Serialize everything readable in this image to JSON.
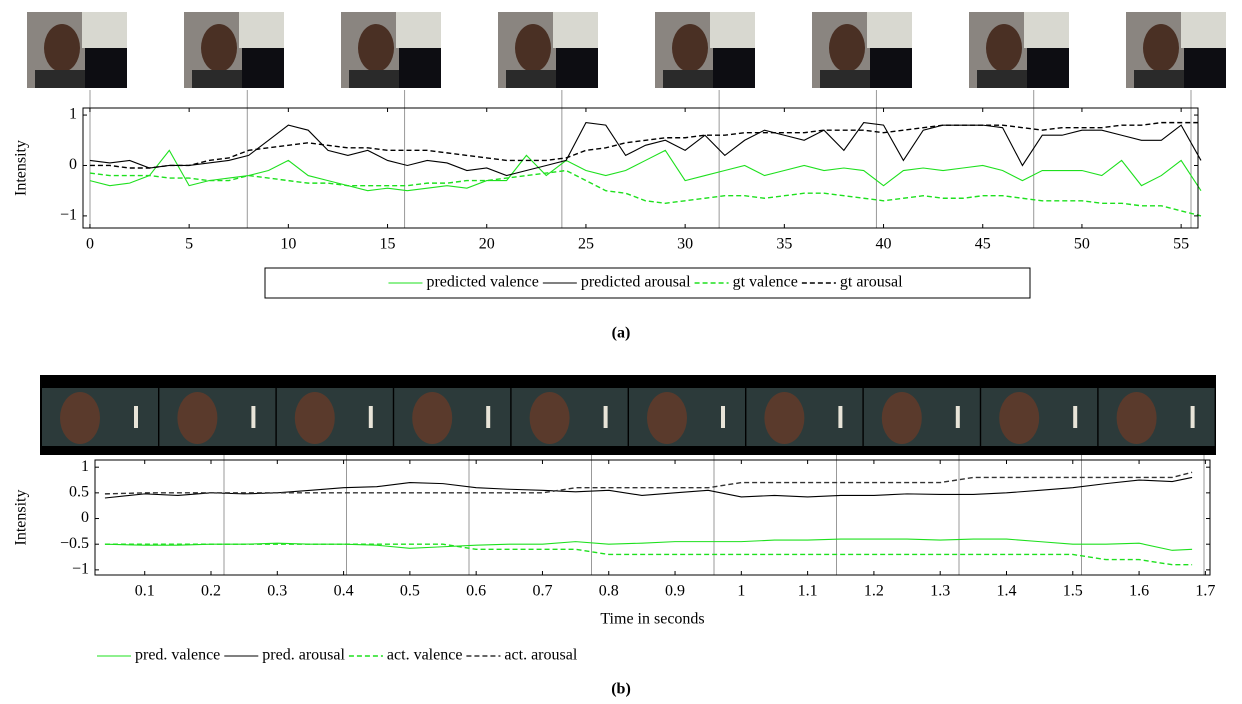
{
  "chart_data": [
    {
      "type": "line",
      "ylabel": "Intensity",
      "caption": "(a)",
      "legend": "bottom",
      "legend_box": true,
      "x": [
        0,
        1,
        2,
        3,
        4,
        5,
        6,
        7,
        8,
        9,
        10,
        11,
        12,
        13,
        14,
        15,
        16,
        17,
        18,
        19,
        20,
        21,
        22,
        23,
        24,
        25,
        26,
        27,
        28,
        29,
        30,
        31,
        32,
        33,
        34,
        35,
        36,
        37,
        38,
        39,
        40,
        41,
        42,
        43,
        44,
        45,
        46,
        47,
        48,
        49,
        50,
        51,
        52,
        53,
        54,
        55,
        56
      ],
      "xlim": [
        -0.35,
        55.85
      ],
      "ylim": [
        -1.24,
        1.14
      ],
      "xticks": [
        0,
        5,
        10,
        15,
        20,
        25,
        30,
        35,
        40,
        45,
        50,
        55
      ],
      "yticks": [
        {
          "value": -1,
          "label": "−1"
        },
        0,
        1
      ],
      "series": [
        {
          "name": "predicted valence",
          "color": "#1ee01e",
          "dash": false,
          "values": [
            -0.3,
            -0.4,
            -0.35,
            -0.2,
            0.3,
            -0.4,
            -0.3,
            -0.25,
            -0.2,
            -0.1,
            0.1,
            -0.2,
            -0.3,
            -0.4,
            -0.5,
            -0.45,
            -0.5,
            -0.45,
            -0.4,
            -0.45,
            -0.3,
            -0.3,
            0.2,
            -0.2,
            0.1,
            -0.1,
            -0.2,
            -0.1,
            0.1,
            0.3,
            -0.3,
            -0.2,
            -0.1,
            0,
            -0.2,
            -0.1,
            0,
            -0.1,
            -0.05,
            -0.1,
            -0.4,
            -0.1,
            -0.05,
            -0.1,
            -0.05,
            0,
            -0.1,
            -0.3,
            -0.1,
            -0.1,
            -0.1,
            -0.2,
            0.1,
            -0.4,
            -0.2,
            0.1,
            -0.5
          ]
        },
        {
          "name": "predicted arousal",
          "color": "#000000",
          "dash": false,
          "values": [
            0.1,
            0.05,
            0.1,
            -0.05,
            0,
            0,
            0.05,
            0.1,
            0.2,
            0.5,
            0.8,
            0.7,
            0.3,
            0.2,
            0.3,
            0.1,
            0,
            0.1,
            0.05,
            -0.1,
            -0.05,
            -0.2,
            -0.1,
            0,
            0.1,
            0.85,
            0.8,
            0.2,
            0.4,
            0.5,
            0.3,
            0.6,
            0.2,
            0.5,
            0.7,
            0.6,
            0.5,
            0.7,
            0.3,
            0.85,
            0.8,
            0.1,
            0.7,
            0.8,
            0.8,
            0.8,
            0.75,
            0,
            0.6,
            0.6,
            0.7,
            0.7,
            0.6,
            0.5,
            0.5,
            0.8,
            0.1
          ]
        },
        {
          "name": "gt valence",
          "color": "#1ee01e",
          "dash": true,
          "values": [
            -0.15,
            -0.2,
            -0.2,
            -0.2,
            -0.25,
            -0.25,
            -0.3,
            -0.3,
            -0.2,
            -0.25,
            -0.3,
            -0.35,
            -0.35,
            -0.4,
            -0.4,
            -0.4,
            -0.4,
            -0.35,
            -0.35,
            -0.3,
            -0.3,
            -0.25,
            -0.2,
            -0.15,
            -0.1,
            -0.3,
            -0.5,
            -0.55,
            -0.7,
            -0.75,
            -0.7,
            -0.65,
            -0.6,
            -0.6,
            -0.65,
            -0.6,
            -0.55,
            -0.55,
            -0.6,
            -0.65,
            -0.7,
            -0.65,
            -0.6,
            -0.65,
            -0.65,
            -0.6,
            -0.6,
            -0.65,
            -0.7,
            -0.7,
            -0.7,
            -0.75,
            -0.75,
            -0.8,
            -0.8,
            -0.9,
            -1.0
          ]
        },
        {
          "name": "gt arousal",
          "color": "#000000",
          "dash": true,
          "values": [
            0,
            0,
            -0.05,
            -0.05,
            0,
            0,
            0.1,
            0.15,
            0.3,
            0.35,
            0.4,
            0.45,
            0.4,
            0.35,
            0.35,
            0.3,
            0.3,
            0.3,
            0.25,
            0.2,
            0.15,
            0.1,
            0.1,
            0.1,
            0.15,
            0.3,
            0.35,
            0.45,
            0.5,
            0.55,
            0.55,
            0.6,
            0.6,
            0.65,
            0.65,
            0.65,
            0.65,
            0.7,
            0.7,
            0.7,
            0.65,
            0.7,
            0.75,
            0.8,
            0.8,
            0.8,
            0.8,
            0.75,
            0.7,
            0.75,
            0.75,
            0.75,
            0.8,
            0.8,
            0.85,
            0.85,
            0.85
          ]
        }
      ]
    },
    {
      "type": "line",
      "ylabel": "Intensity",
      "xlabel": "Time in seconds",
      "caption": "(b)",
      "legend": "bottom",
      "legend_box": false,
      "x": [
        0.04,
        0.1,
        0.15,
        0.2,
        0.25,
        0.3,
        0.35,
        0.4,
        0.45,
        0.5,
        0.55,
        0.6,
        0.65,
        0.7,
        0.75,
        0.8,
        0.85,
        0.9,
        0.95,
        1.0,
        1.05,
        1.1,
        1.15,
        1.2,
        1.25,
        1.3,
        1.35,
        1.4,
        1.45,
        1.5,
        1.55,
        1.6,
        1.65,
        1.68
      ],
      "xlim": [
        0.025,
        1.707
      ],
      "ylim": [
        -1.1,
        1.14
      ],
      "xticks": [
        0.1,
        0.2,
        0.3,
        0.4,
        0.5,
        0.6,
        0.7,
        0.8,
        0.9,
        1,
        1.1,
        1.2,
        1.3,
        1.4,
        1.5,
        1.6,
        1.7
      ],
      "yticks": [
        {
          "value": -1,
          "label": "−1"
        },
        {
          "value": -0.5,
          "label": "−0.5"
        },
        0,
        0.5,
        1
      ],
      "series": [
        {
          "name": "pred. valence",
          "color": "#1ee01e",
          "dash": false,
          "values": [
            -0.5,
            -0.52,
            -0.52,
            -0.5,
            -0.5,
            -0.48,
            -0.5,
            -0.5,
            -0.52,
            -0.58,
            -0.55,
            -0.52,
            -0.5,
            -0.5,
            -0.45,
            -0.5,
            -0.48,
            -0.45,
            -0.45,
            -0.45,
            -0.42,
            -0.42,
            -0.4,
            -0.4,
            -0.4,
            -0.42,
            -0.4,
            -0.4,
            -0.45,
            -0.5,
            -0.5,
            -0.48,
            -0.62,
            -0.6
          ]
        },
        {
          "name": "pred. arousal",
          "color": "#000000",
          "dash": false,
          "values": [
            0.4,
            0.48,
            0.45,
            0.5,
            0.48,
            0.5,
            0.55,
            0.6,
            0.62,
            0.7,
            0.68,
            0.6,
            0.57,
            0.55,
            0.52,
            0.55,
            0.45,
            0.5,
            0.55,
            0.42,
            0.45,
            0.42,
            0.45,
            0.45,
            0.48,
            0.47,
            0.47,
            0.5,
            0.55,
            0.6,
            0.68,
            0.75,
            0.72,
            0.8
          ]
        },
        {
          "name": "act. valence",
          "color": "#1ee01e",
          "dash": true,
          "values": [
            -0.5,
            -0.5,
            -0.5,
            -0.5,
            -0.5,
            -0.5,
            -0.5,
            -0.5,
            -0.5,
            -0.5,
            -0.5,
            -0.6,
            -0.6,
            -0.6,
            -0.6,
            -0.7,
            -0.7,
            -0.7,
            -0.7,
            -0.7,
            -0.7,
            -0.7,
            -0.7,
            -0.7,
            -0.7,
            -0.7,
            -0.7,
            -0.7,
            -0.7,
            -0.7,
            -0.8,
            -0.8,
            -0.9,
            -0.9
          ]
        },
        {
          "name": "act. arousal",
          "color": "#333333",
          "dash": true,
          "values": [
            0.48,
            0.5,
            0.5,
            0.5,
            0.5,
            0.5,
            0.5,
            0.5,
            0.5,
            0.5,
            0.5,
            0.5,
            0.5,
            0.5,
            0.6,
            0.6,
            0.6,
            0.6,
            0.6,
            0.7,
            0.7,
            0.7,
            0.7,
            0.7,
            0.7,
            0.7,
            0.8,
            0.8,
            0.8,
            0.8,
            0.8,
            0.8,
            0.8,
            0.9
          ]
        }
      ]
    }
  ]
}
